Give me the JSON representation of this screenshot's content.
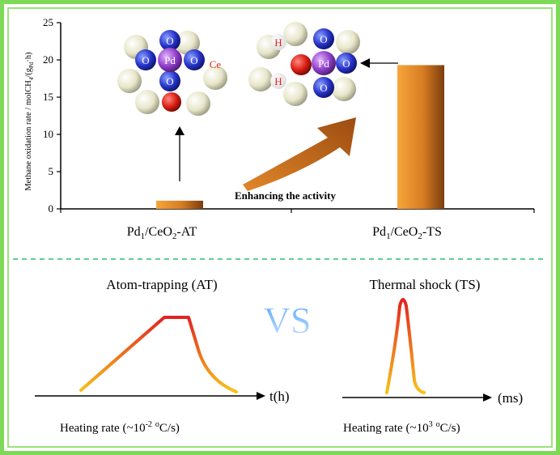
{
  "chart_data": {
    "type": "bar",
    "ylabel": "Methane oxidation rate / molCH4/(gPd·h)",
    "ylim": [
      0,
      25
    ],
    "yticks": [
      0,
      5,
      10,
      15,
      20,
      25
    ],
    "categories": [
      "Pd1/CeO2-AT",
      "Pd1/CeO2-TS"
    ],
    "values": [
      1.1,
      19.3
    ],
    "bar_color": "#e08a2a",
    "annotation": "Enhancing the activity"
  },
  "atoms_left": {
    "center": "Pd",
    "o": "O",
    "ce": "Ce"
  },
  "atoms_right": {
    "center": "Pd",
    "o": "O",
    "h": "H"
  },
  "bottom": {
    "vs": "VS",
    "at": {
      "title": "Atom-trapping (AT)",
      "axis": "t(h)",
      "rate_prefix": "Heating rate (~10",
      "rate_exp": "-2",
      "rate_deg": "o",
      "rate_suffix": "C/s)"
    },
    "ts": {
      "title": "Thermal shock (TS)",
      "axis": "(ms)",
      "rate_prefix": "Heating rate (~10",
      "rate_exp": "3",
      "rate_deg": "o",
      "rate_suffix": "C/s)"
    }
  }
}
